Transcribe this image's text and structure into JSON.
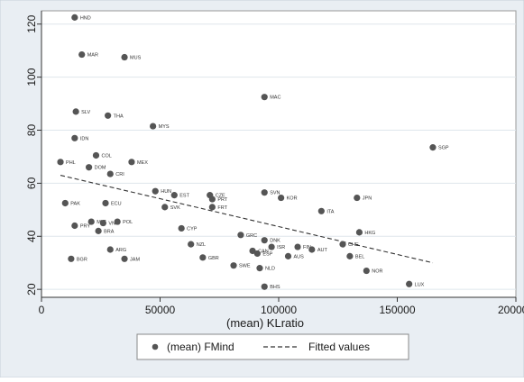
{
  "chart_data": {
    "type": "scatter",
    "xlabel": "(mean) KLratio",
    "ylabel": "",
    "xlim": [
      0,
      200000
    ],
    "ylim": [
      17,
      125
    ],
    "x_ticks": [
      0,
      50000,
      100000,
      150000,
      200000
    ],
    "y_ticks": [
      20,
      40,
      60,
      80,
      100,
      120
    ],
    "grid": "horizontal",
    "legend_position": "bottom",
    "colors": {
      "points": "#555555",
      "fit": "#333333",
      "plot_bg": "#ffffff",
      "outer_bg": "#e9eef3",
      "grid": "#dfe6ec"
    },
    "series": [
      {
        "name": "(mean) FMind",
        "kind": "scatter",
        "points": [
          {
            "label": "HND",
            "x": 14000,
            "y": 122.5
          },
          {
            "label": "MAR",
            "x": 17000,
            "y": 108.5
          },
          {
            "label": "MUS",
            "x": 35000,
            "y": 107.5
          },
          {
            "label": "MAC",
            "x": 94000,
            "y": 92.5
          },
          {
            "label": "SLV",
            "x": 14500,
            "y": 87
          },
          {
            "label": "THA",
            "x": 28000,
            "y": 85.5
          },
          {
            "label": "MYS",
            "x": 47000,
            "y": 81.5
          },
          {
            "label": "IDN",
            "x": 14000,
            "y": 77
          },
          {
            "label": "SGP",
            "x": 165000,
            "y": 73.5
          },
          {
            "label": "COL",
            "x": 23000,
            "y": 70.5
          },
          {
            "label": "PHL",
            "x": 8000,
            "y": 68
          },
          {
            "label": "MEX",
            "x": 38000,
            "y": 68
          },
          {
            "label": "DOM",
            "x": 20000,
            "y": 66
          },
          {
            "label": "CRI",
            "x": 29000,
            "y": 63.5
          },
          {
            "label": "HUN",
            "x": 48000,
            "y": 57
          },
          {
            "label": "EST",
            "x": 56000,
            "y": 55.5
          },
          {
            "label": "CZE",
            "x": 71000,
            "y": 55.5
          },
          {
            "label": "SVN",
            "x": 94000,
            "y": 56.5
          },
          {
            "label": "PRT",
            "x": 72000,
            "y": 54
          },
          {
            "label": "KOR",
            "x": 101000,
            "y": 54.5
          },
          {
            "label": "JPN",
            "x": 133000,
            "y": 54.5
          },
          {
            "label": "PAK",
            "x": 10000,
            "y": 52.5
          },
          {
            "label": "ECU",
            "x": 27000,
            "y": 52.5
          },
          {
            "label": "SVK",
            "x": 52000,
            "y": 51
          },
          {
            "label": "FRT",
            "x": 72000,
            "y": 51
          },
          {
            "label": "ITA",
            "x": 118000,
            "y": 49.5
          },
          {
            "label": "MLT",
            "x": 21000,
            "y": 45.5
          },
          {
            "label": "VNM",
            "x": 26000,
            "y": 45
          },
          {
            "label": "POL",
            "x": 32000,
            "y": 45.5
          },
          {
            "label": "PRY",
            "x": 14000,
            "y": 44
          },
          {
            "label": "BRA",
            "x": 24000,
            "y": 42
          },
          {
            "label": "CYP",
            "x": 59000,
            "y": 43
          },
          {
            "label": "HKG",
            "x": 134000,
            "y": 41.5
          },
          {
            "label": "GRC",
            "x": 84000,
            "y": 40.5
          },
          {
            "label": "DNK",
            "x": 94000,
            "y": 38.5
          },
          {
            "label": "NZL",
            "x": 63000,
            "y": 37
          },
          {
            "label": "ISR",
            "x": 97000,
            "y": 36
          },
          {
            "label": "FIN",
            "x": 108000,
            "y": 36
          },
          {
            "label": "AUT",
            "x": 114000,
            "y": 35
          },
          {
            "label": "CHE",
            "x": 127000,
            "y": 37
          },
          {
            "label": "ARG",
            "x": 29000,
            "y": 35
          },
          {
            "label": "CAN",
            "x": 89000,
            "y": 34.5
          },
          {
            "label": "ESP",
            "x": 91000,
            "y": 33.5
          },
          {
            "label": "AUS",
            "x": 104000,
            "y": 32.5
          },
          {
            "label": "BEL",
            "x": 130000,
            "y": 32.5
          },
          {
            "label": "BGR",
            "x": 12500,
            "y": 31.5
          },
          {
            "label": "GBR",
            "x": 68000,
            "y": 32
          },
          {
            "label": "JAM",
            "x": 35000,
            "y": 31.5
          },
          {
            "label": "SWE",
            "x": 81000,
            "y": 29
          },
          {
            "label": "NLD",
            "x": 92000,
            "y": 28
          },
          {
            "label": "NOR",
            "x": 137000,
            "y": 27
          },
          {
            "label": "LUX",
            "x": 155000,
            "y": 22
          },
          {
            "label": "BHS",
            "x": 94000,
            "y": 21
          }
        ]
      },
      {
        "name": "Fitted values",
        "kind": "line",
        "style": "dashed",
        "x": [
          8000,
          165000
        ],
        "y": [
          63,
          30
        ]
      }
    ]
  }
}
